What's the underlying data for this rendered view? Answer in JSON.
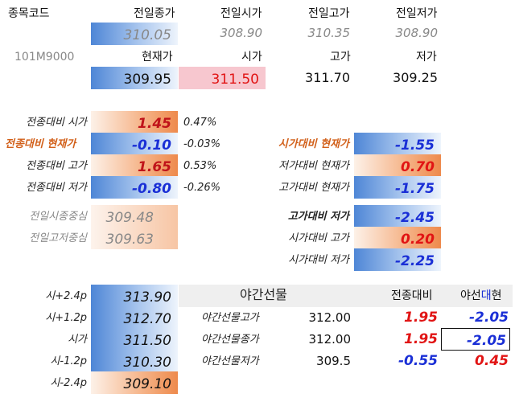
{
  "header": {
    "code_label": "종목코드",
    "code": "101M9000",
    "prev_headers": [
      "전일종가",
      "전일시가",
      "전일고가",
      "전일저가"
    ],
    "prev_values": [
      "310.05",
      "308.90",
      "310.35",
      "308.90"
    ],
    "cur_headers": [
      "현재가",
      "시가",
      "고가",
      "저가"
    ],
    "cur_values": [
      "309.95",
      "311.50",
      "311.70",
      "309.25"
    ]
  },
  "compare_left": [
    {
      "label": "전종대비 시가",
      "value": "1.45",
      "pct": "0.47%"
    },
    {
      "label": "전종대비 현재가",
      "value": "-0.10",
      "pct": "-0.03%"
    },
    {
      "label": "전종대비 고가",
      "value": "1.65",
      "pct": "0.53%"
    },
    {
      "label": "전종대비 저가",
      "value": "-0.80",
      "pct": "-0.26%"
    }
  ],
  "center": [
    {
      "label": "전일시종중심",
      "value": "309.48"
    },
    {
      "label": "전일고저중심",
      "value": "309.63"
    }
  ],
  "compare_right": [
    {
      "label": "시가대비 현재가",
      "value": "-1.55"
    },
    {
      "label": "저가대비 현재가",
      "value": "0.70"
    },
    {
      "label": "고가대비 현재가",
      "value": "-1.75"
    },
    {
      "label": "고가대비 저가",
      "value": "-2.45"
    },
    {
      "label": "시가대비 고가",
      "value": "0.20"
    },
    {
      "label": "시가대비 저가",
      "value": "-2.25"
    }
  ],
  "levels": [
    {
      "label": "시+2.4p",
      "value": "313.90"
    },
    {
      "label": "시+1.2p",
      "value": "312.70"
    },
    {
      "label": "시가",
      "value": "311.50"
    },
    {
      "label": "시-1.2p",
      "value": "310.30"
    },
    {
      "label": "시-2.4p",
      "value": "309.10"
    }
  ],
  "night": {
    "title": "야간선물",
    "col_prev": "전종대비",
    "col_night_a": "야선",
    "col_night_b": "대",
    "col_night_c": "현",
    "rows": [
      {
        "label": "야간선물고가",
        "value": "312.00",
        "prev": "1.95",
        "night": "-2.05"
      },
      {
        "label": "야간선물종가",
        "value": "312.00",
        "prev": "1.95",
        "night": "-2.05"
      },
      {
        "label": "야간선물저가",
        "value": "309.5",
        "prev": "-0.55",
        "night": "0.45"
      }
    ]
  }
}
